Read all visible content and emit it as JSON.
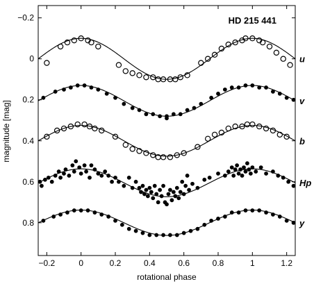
{
  "chart_data": {
    "type": "scatter",
    "title": "HD 215 441",
    "xlabel": "rotational phase",
    "ylabel": "magnitude [mag]",
    "xlim": [
      -0.25,
      1.25
    ],
    "ylim": [
      0.96,
      -0.26
    ],
    "y_inverted": true,
    "grid": false,
    "x_ticks": [
      -0.2,
      0,
      0.2,
      0.4,
      0.6,
      0.8,
      1,
      1.2
    ],
    "x_tick_labels": [
      "−0.2",
      "0",
      "0.2",
      "0.4",
      "0.6",
      "0.8",
      "1",
      "1.2"
    ],
    "y_ticks": [
      -0.2,
      0,
      0.2,
      0.4,
      0.6,
      0.8
    ],
    "y_tick_labels": [
      "−0.2",
      "0",
      "0.2",
      "0.4",
      "0.6",
      "0.8"
    ],
    "series": [
      {
        "name": "u",
        "marker": "open-circle",
        "fit": {
          "mean": 0.0,
          "amplitude": 0.1
        },
        "x": [
          -0.2,
          -0.12,
          -0.08,
          -0.04,
          0.0,
          0.04,
          0.06,
          0.1,
          0.22,
          0.26,
          0.3,
          0.34,
          0.38,
          0.42,
          0.45,
          0.48,
          0.52,
          0.55,
          0.58,
          0.62,
          0.7,
          0.74,
          0.78,
          0.82,
          0.86,
          0.9,
          0.94,
          0.96,
          1.0,
          1.04,
          1.06,
          1.1,
          1.14,
          1.18,
          1.22
        ],
        "y": [
          0.02,
          -0.06,
          -0.08,
          -0.09,
          -0.1,
          -0.09,
          -0.08,
          -0.06,
          0.03,
          0.06,
          0.07,
          0.08,
          0.09,
          0.09,
          0.1,
          0.1,
          0.1,
          0.1,
          0.09,
          0.08,
          0.02,
          0.0,
          -0.02,
          -0.05,
          -0.07,
          -0.08,
          -0.09,
          -0.1,
          -0.1,
          -0.09,
          -0.08,
          -0.06,
          -0.03,
          0.0,
          0.03
        ]
      },
      {
        "name": "v",
        "marker": "filled-circle",
        "fit": {
          "mean": 0.205,
          "amplitude": 0.075
        },
        "x": [
          -0.22,
          -0.15,
          -0.1,
          -0.06,
          -0.02,
          0.02,
          0.06,
          0.1,
          0.15,
          0.2,
          0.25,
          0.3,
          0.34,
          0.38,
          0.42,
          0.46,
          0.5,
          0.5,
          0.54,
          0.58,
          0.62,
          0.66,
          0.7,
          0.76,
          0.8,
          0.84,
          0.88,
          0.92,
          0.96,
          1.0,
          1.04,
          1.08,
          1.12,
          1.16,
          1.2,
          1.24
        ],
        "y": [
          0.19,
          0.16,
          0.15,
          0.14,
          0.13,
          0.13,
          0.14,
          0.15,
          0.17,
          0.19,
          0.22,
          0.24,
          0.25,
          0.27,
          0.27,
          0.28,
          0.28,
          0.29,
          0.27,
          0.27,
          0.25,
          0.24,
          0.22,
          0.19,
          0.17,
          0.15,
          0.14,
          0.14,
          0.13,
          0.13,
          0.14,
          0.14,
          0.16,
          0.17,
          0.19,
          0.2
        ]
      },
      {
        "name": "b",
        "marker": "open-circle",
        "fit": {
          "mean": 0.4,
          "amplitude": 0.075
        },
        "x": [
          -0.2,
          -0.14,
          -0.1,
          -0.06,
          -0.02,
          0.02,
          0.05,
          0.08,
          0.12,
          0.2,
          0.26,
          0.3,
          0.34,
          0.38,
          0.42,
          0.45,
          0.48,
          0.52,
          0.56,
          0.6,
          0.68,
          0.74,
          0.78,
          0.82,
          0.86,
          0.9,
          0.94,
          0.97,
          1.0,
          1.04,
          1.08,
          1.12,
          1.16,
          1.2
        ],
        "y": [
          0.38,
          0.35,
          0.34,
          0.33,
          0.32,
          0.32,
          0.33,
          0.34,
          0.35,
          0.38,
          0.42,
          0.44,
          0.45,
          0.46,
          0.47,
          0.48,
          0.48,
          0.48,
          0.47,
          0.46,
          0.43,
          0.39,
          0.37,
          0.36,
          0.34,
          0.33,
          0.33,
          0.32,
          0.32,
          0.33,
          0.34,
          0.35,
          0.37,
          0.38
        ]
      },
      {
        "name": "Hp",
        "marker": "filled-circle",
        "fit": {
          "mean": 0.605,
          "amplitude": 0.068
        },
        "x": [
          -0.24,
          -0.23,
          -0.21,
          -0.19,
          -0.17,
          -0.15,
          -0.13,
          -0.12,
          -0.1,
          -0.09,
          -0.07,
          -0.05,
          -0.04,
          -0.03,
          -0.01,
          0.0,
          0.02,
          0.03,
          0.05,
          0.06,
          0.08,
          0.1,
          0.12,
          0.14,
          0.16,
          0.18,
          0.2,
          0.22,
          0.25,
          0.28,
          0.3,
          0.32,
          0.34,
          0.35,
          0.36,
          0.37,
          0.38,
          0.39,
          0.4,
          0.41,
          0.42,
          0.43,
          0.44,
          0.45,
          0.46,
          0.47,
          0.48,
          0.49,
          0.5,
          0.51,
          0.52,
          0.53,
          0.54,
          0.55,
          0.56,
          0.57,
          0.58,
          0.59,
          0.6,
          0.61,
          0.62,
          0.63,
          0.65,
          0.68,
          0.72,
          0.75,
          0.8,
          0.84,
          0.86,
          0.88,
          0.89,
          0.9,
          0.91,
          0.92,
          0.93,
          0.94,
          0.95,
          0.96,
          0.97,
          0.98,
          0.99,
          1.0,
          1.02,
          1.05,
          1.08,
          1.12,
          1.15,
          1.18,
          1.21,
          1.24
        ],
        "y": [
          0.6,
          0.62,
          0.59,
          0.58,
          0.6,
          0.57,
          0.55,
          0.58,
          0.56,
          0.54,
          0.57,
          0.52,
          0.55,
          0.5,
          0.53,
          0.56,
          0.52,
          0.55,
          0.58,
          0.52,
          0.54,
          0.56,
          0.57,
          0.55,
          0.57,
          0.6,
          0.58,
          0.6,
          0.62,
          0.58,
          0.63,
          0.6,
          0.63,
          0.65,
          0.62,
          0.66,
          0.64,
          0.67,
          0.63,
          0.65,
          0.68,
          0.62,
          0.66,
          0.7,
          0.64,
          0.67,
          0.62,
          0.7,
          0.71,
          0.66,
          0.64,
          0.69,
          0.65,
          0.67,
          0.63,
          0.68,
          0.65,
          0.6,
          0.66,
          0.62,
          0.57,
          0.64,
          0.61,
          0.63,
          0.59,
          0.58,
          0.56,
          0.57,
          0.55,
          0.53,
          0.57,
          0.54,
          0.52,
          0.56,
          0.54,
          0.57,
          0.53,
          0.55,
          0.51,
          0.54,
          0.56,
          0.53,
          0.55,
          0.53,
          0.56,
          0.55,
          0.57,
          0.58,
          0.6,
          0.62
        ]
      },
      {
        "name": "y",
        "marker": "filled-circle",
        "fit": {
          "mean": 0.8,
          "amplitude": 0.062
        },
        "x": [
          -0.22,
          -0.16,
          -0.12,
          -0.08,
          -0.04,
          0.0,
          0.04,
          0.08,
          0.12,
          0.16,
          0.2,
          0.24,
          0.28,
          0.32,
          0.36,
          0.4,
          0.44,
          0.48,
          0.52,
          0.56,
          0.6,
          0.64,
          0.68,
          0.72,
          0.76,
          0.8,
          0.84,
          0.88,
          0.92,
          0.96,
          1.0,
          1.04,
          1.08,
          1.12,
          1.16,
          1.2,
          1.24
        ],
        "y": [
          0.79,
          0.77,
          0.76,
          0.75,
          0.74,
          0.74,
          0.74,
          0.75,
          0.76,
          0.77,
          0.79,
          0.81,
          0.83,
          0.84,
          0.85,
          0.86,
          0.86,
          0.86,
          0.86,
          0.86,
          0.85,
          0.84,
          0.83,
          0.81,
          0.79,
          0.78,
          0.77,
          0.75,
          0.75,
          0.74,
          0.74,
          0.74,
          0.75,
          0.76,
          0.77,
          0.79,
          0.8
        ]
      }
    ]
  }
}
